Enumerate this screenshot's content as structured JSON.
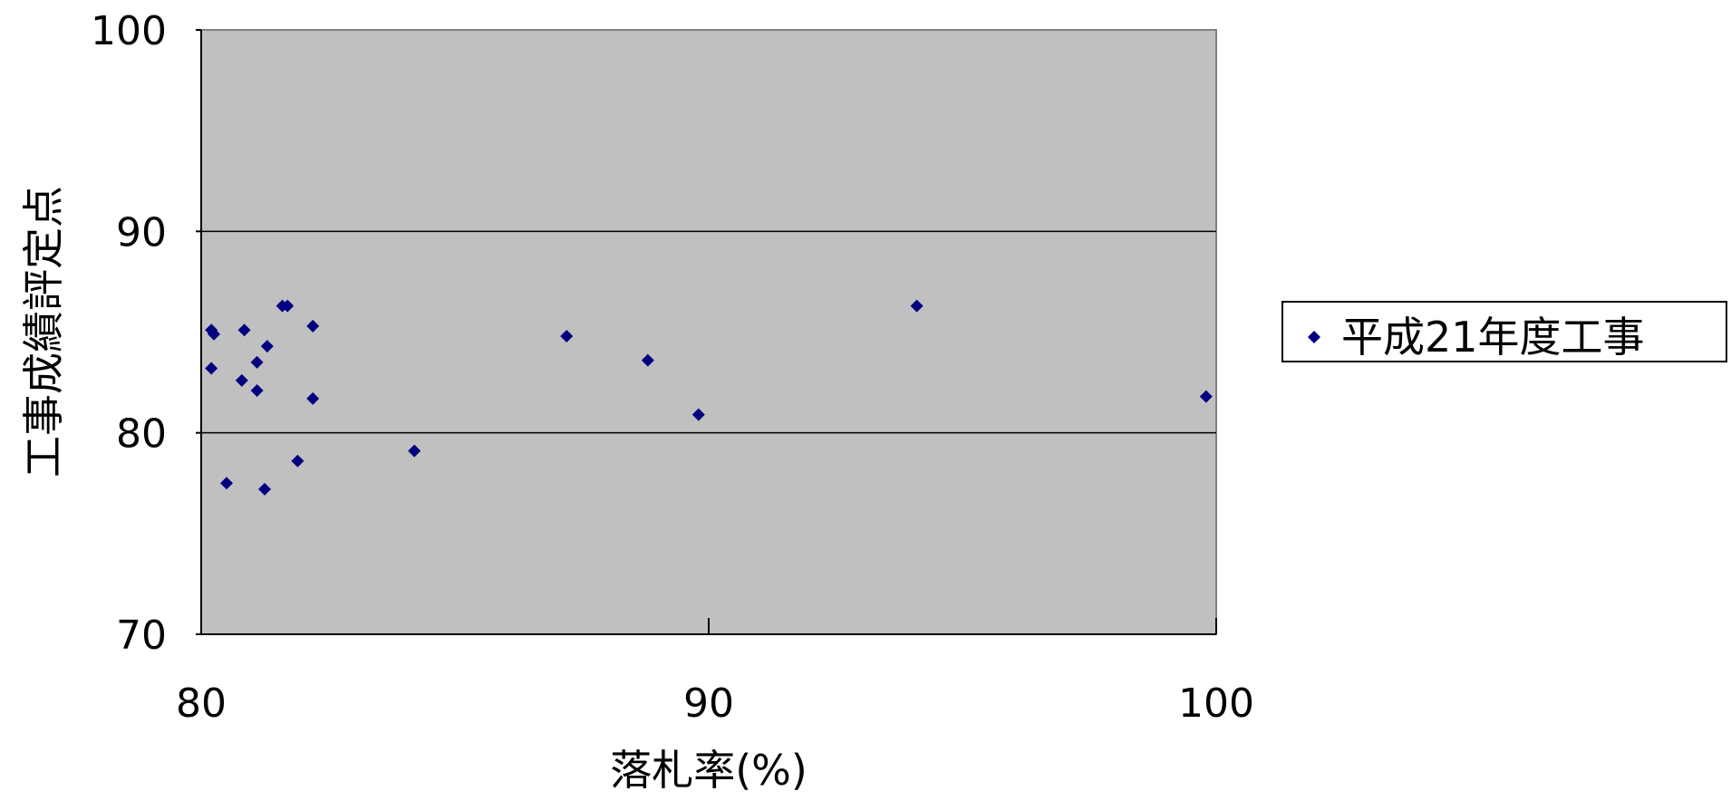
{
  "chart_data": {
    "type": "scatter",
    "title": "",
    "xlabel": "落札率(%)",
    "ylabel": "工事成績評定点",
    "xlim": [
      80,
      100
    ],
    "ylim": [
      70,
      100
    ],
    "x_ticks": [
      "80",
      "90",
      "100"
    ],
    "y_ticks": [
      "100",
      "90",
      "80",
      "70"
    ],
    "grid": "horizontal lines at 80 and 90",
    "legend_position": "right",
    "plot_background": "#c0c0c0",
    "series": [
      {
        "name": "平成21年度工事",
        "color": "#000080",
        "marker": "diamond",
        "points": [
          {
            "x": 80.2,
            "y": 85.1
          },
          {
            "x": 80.25,
            "y": 84.9
          },
          {
            "x": 80.2,
            "y": 83.2
          },
          {
            "x": 80.5,
            "y": 77.5
          },
          {
            "x": 80.8,
            "y": 82.6
          },
          {
            "x": 80.85,
            "y": 85.1
          },
          {
            "x": 81.1,
            "y": 83.5
          },
          {
            "x": 81.1,
            "y": 82.1
          },
          {
            "x": 81.25,
            "y": 77.2
          },
          {
            "x": 81.3,
            "y": 84.3
          },
          {
            "x": 81.6,
            "y": 86.3
          },
          {
            "x": 81.7,
            "y": 86.3
          },
          {
            "x": 81.9,
            "y": 78.6
          },
          {
            "x": 82.2,
            "y": 85.3
          },
          {
            "x": 82.2,
            "y": 81.7
          },
          {
            "x": 84.2,
            "y": 79.1
          },
          {
            "x": 87.2,
            "y": 84.8
          },
          {
            "x": 88.8,
            "y": 83.6
          },
          {
            "x": 89.8,
            "y": 80.9
          },
          {
            "x": 94.1,
            "y": 86.3
          },
          {
            "x": 99.8,
            "y": 81.8
          }
        ]
      }
    ]
  }
}
